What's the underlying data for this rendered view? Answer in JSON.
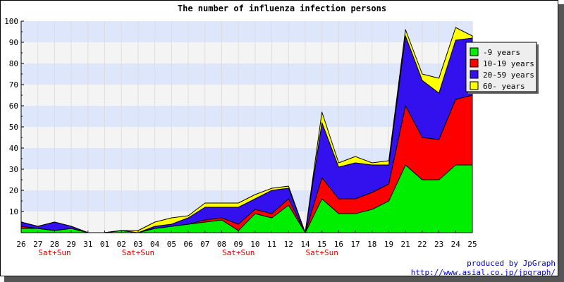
{
  "chart_data": {
    "type": "area",
    "stacked": true,
    "title": "The number of influenza infection persons",
    "xlabel": "",
    "ylabel": "",
    "ylim": [
      0,
      100
    ],
    "yticks": [
      10,
      20,
      30,
      40,
      50,
      60,
      70,
      80,
      90,
      100
    ],
    "grid": true,
    "legend_position": "top-right",
    "categories": [
      "26",
      "27",
      "28",
      "29",
      "31",
      "01",
      "02",
      "03",
      "04",
      "05",
      "06",
      "07",
      "08",
      "09",
      "10",
      "11",
      "12",
      "14",
      "15",
      "16",
      "17",
      "18",
      "19",
      "21",
      "22",
      "23",
      "24",
      "25"
    ],
    "weekend_labels": [
      {
        "category": "28",
        "text": "Sat+Sun"
      },
      {
        "category": "03",
        "text": "Sat+Sun"
      },
      {
        "category": "09",
        "text": "Sat+Sun"
      },
      {
        "category": "15",
        "text": "Sat+Sun"
      }
    ],
    "series": [
      {
        "name": "-9 years",
        "color": "#00ee00",
        "values": [
          2,
          2,
          1,
          2,
          0,
          0,
          1,
          0,
          2,
          3,
          4,
          5,
          6,
          1,
          9,
          7,
          13,
          0,
          16,
          9,
          9,
          11,
          15,
          32,
          25,
          25,
          32,
          32
        ]
      },
      {
        "name": "10-19 years",
        "color": "#ff0000",
        "values": [
          1,
          0,
          0,
          0,
          0,
          0,
          0,
          0,
          0,
          0,
          0,
          1,
          1,
          3,
          2,
          2,
          3,
          0,
          10,
          7,
          7,
          8,
          8,
          28,
          20,
          19,
          31,
          33
        ]
      },
      {
        "name": "20-59 years",
        "color": "#3311ee",
        "values": [
          2,
          1,
          4,
          1,
          0,
          0,
          0,
          0,
          1,
          1,
          3,
          6,
          5,
          8,
          5,
          11,
          5,
          0,
          26,
          15,
          17,
          13,
          9,
          33,
          27,
          22,
          28,
          27
        ]
      },
      {
        "name": "60- years",
        "color": "#ffff00",
        "values": [
          0,
          0,
          0,
          0,
          0,
          0,
          0,
          1,
          2,
          3,
          1,
          2,
          2,
          2,
          2,
          1,
          1,
          0,
          5,
          2,
          3,
          1,
          2,
          3,
          3,
          7,
          6,
          1
        ]
      }
    ]
  },
  "credits": {
    "line1": "produced by JpGraph",
    "line2": "http://www.asial.co.jp/jpgraph/"
  }
}
